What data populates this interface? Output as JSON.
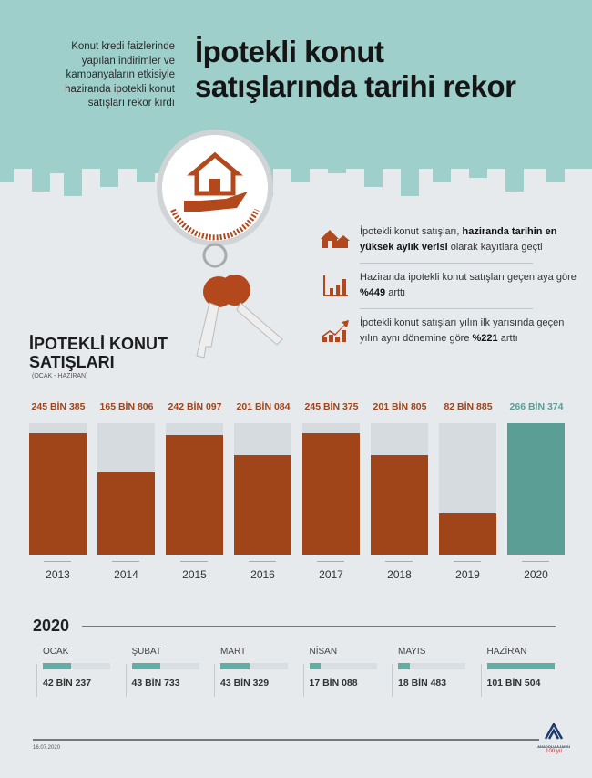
{
  "header": {
    "subtitle": "Konut kredi faizlerinde yapılan indirimler ve kampanyaların etkisiyle haziranda ipotekli konut satışları rekor kırdı",
    "title_line1": "İpotekli konut",
    "title_line2": "satışlarında tarihi rekor"
  },
  "facts": [
    {
      "icon": "houses-icon",
      "pre": "İpotekli konut satışları, ",
      "bold": "haziranda tarihin en yüksek aylık verisi",
      "post": " olarak kayıtlara geçti"
    },
    {
      "icon": "bar-growth-icon",
      "pre": "Haziranda ipotekli konut satışları geçen aya göre ",
      "bold": "%449",
      "post": " arttı"
    },
    {
      "icon": "trend-up-icon",
      "pre": "İpotekli konut satışları yılın ilk yarısında geçen yılın aynı dönemine göre ",
      "bold": "%221",
      "post": " arttı"
    }
  ],
  "colors": {
    "orange": "#a0441a",
    "teal": "#5a9e96",
    "track": "#d5dbdf",
    "sky": "#9ecfcb"
  },
  "chart_data": [
    {
      "type": "bar",
      "title": "İPOTEKLİ KONUT SATIŞLARI",
      "subtitle": "(OCAK - HAZİRAN)",
      "categories": [
        "2013",
        "2014",
        "2015",
        "2016",
        "2017",
        "2018",
        "2019",
        "2020"
      ],
      "values": [
        245385,
        165806,
        242097,
        201084,
        245375,
        201805,
        82885,
        266374
      ],
      "labels": [
        "245 BİN 385",
        "165 BİN 806",
        "242 BİN 097",
        "201 BİN 084",
        "245 BİN 375",
        "201 BİN 805",
        "82 BİN 885",
        "266 BİN 374"
      ],
      "highlight": "2020",
      "ylim": [
        0,
        266374
      ]
    },
    {
      "type": "bar",
      "title": "2020",
      "categories": [
        "OCAK",
        "ŞUBAT",
        "MART",
        "NİSAN",
        "MAYIS",
        "HAZİRAN"
      ],
      "values": [
        42237,
        43733,
        43329,
        17088,
        18483,
        101504
      ],
      "labels": [
        "42 BİN 237",
        "43 BİN 733",
        "43 BİN 329",
        "17 BİN 088",
        "18 BİN 483",
        "101 BİN 504"
      ],
      "orientation": "horizontal",
      "xlim": [
        0,
        101504
      ]
    }
  ],
  "footer": {
    "date": "16.07.2020",
    "logo": "ANADOLU AJANSI",
    "logo_sub": "100 yıl"
  }
}
